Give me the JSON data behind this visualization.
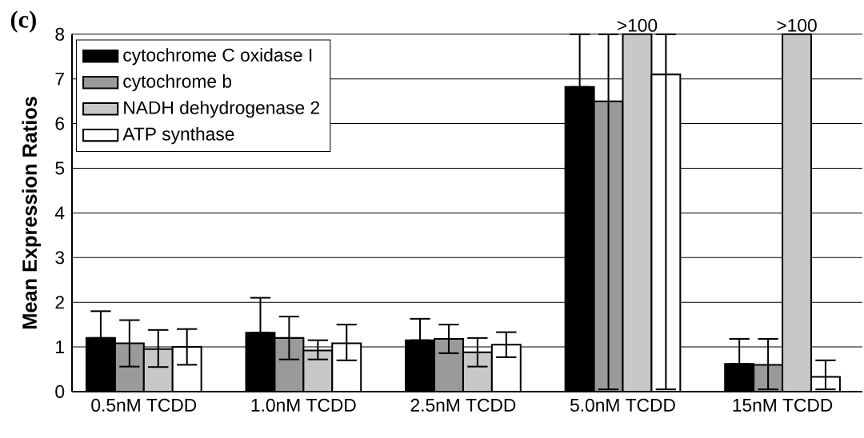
{
  "chart_data": {
    "type": "bar",
    "title": "(c)",
    "ylabel": "Mean Expression Ratios",
    "categories": [
      "0.5nM TCDD",
      "1.0nM TCDD",
      "2.5nM TCDD",
      "5.0nM TCDD",
      "15nM TCDD"
    ],
    "series": [
      {
        "name": "cytochrome C oxidase I",
        "color": "#000000",
        "values": [
          1.2,
          1.32,
          1.15,
          6.82,
          0.62
        ],
        "errors": [
          [
            1.2,
            1.8
          ],
          [
            1.32,
            2.1
          ],
          [
            1.15,
            1.63
          ],
          [
            6.82,
            8
          ],
          [
            0.62,
            1.18
          ]
        ]
      },
      {
        "name": "cytochrome b",
        "color": "#9a9a9a",
        "values": [
          1.08,
          1.2,
          1.18,
          6.5,
          0.6
        ],
        "errors": [
          [
            0.56,
            1.6
          ],
          [
            0.72,
            1.68
          ],
          [
            0.86,
            1.5
          ],
          [
            0.05,
            8
          ],
          [
            0.05,
            1.18
          ]
        ]
      },
      {
        "name": "NADH dehydrogenase 2",
        "color": "#c8c8c8",
        "values": [
          0.95,
          0.92,
          0.88,
          8,
          8
        ],
        "value_labels": [
          null,
          null,
          null,
          ">100",
          ">100"
        ],
        "errors": [
          [
            0.55,
            1.38
          ],
          [
            0.72,
            1.15
          ],
          [
            0.56,
            1.2
          ],
          null,
          null
        ]
      },
      {
        "name": "ATP synthase",
        "color": "#ffffff",
        "values": [
          1.0,
          1.08,
          1.05,
          7.1,
          0.33
        ],
        "errors": [
          [
            0.6,
            1.4
          ],
          [
            0.7,
            1.5
          ],
          [
            0.77,
            1.33
          ],
          [
            0.05,
            8
          ],
          [
            0.05,
            0.7
          ]
        ]
      }
    ],
    "ylim": [
      0,
      8
    ],
    "yticks": [
      0,
      1,
      2,
      3,
      4,
      5,
      6,
      7,
      8
    ],
    "grid": "y",
    "legend": "top left"
  }
}
